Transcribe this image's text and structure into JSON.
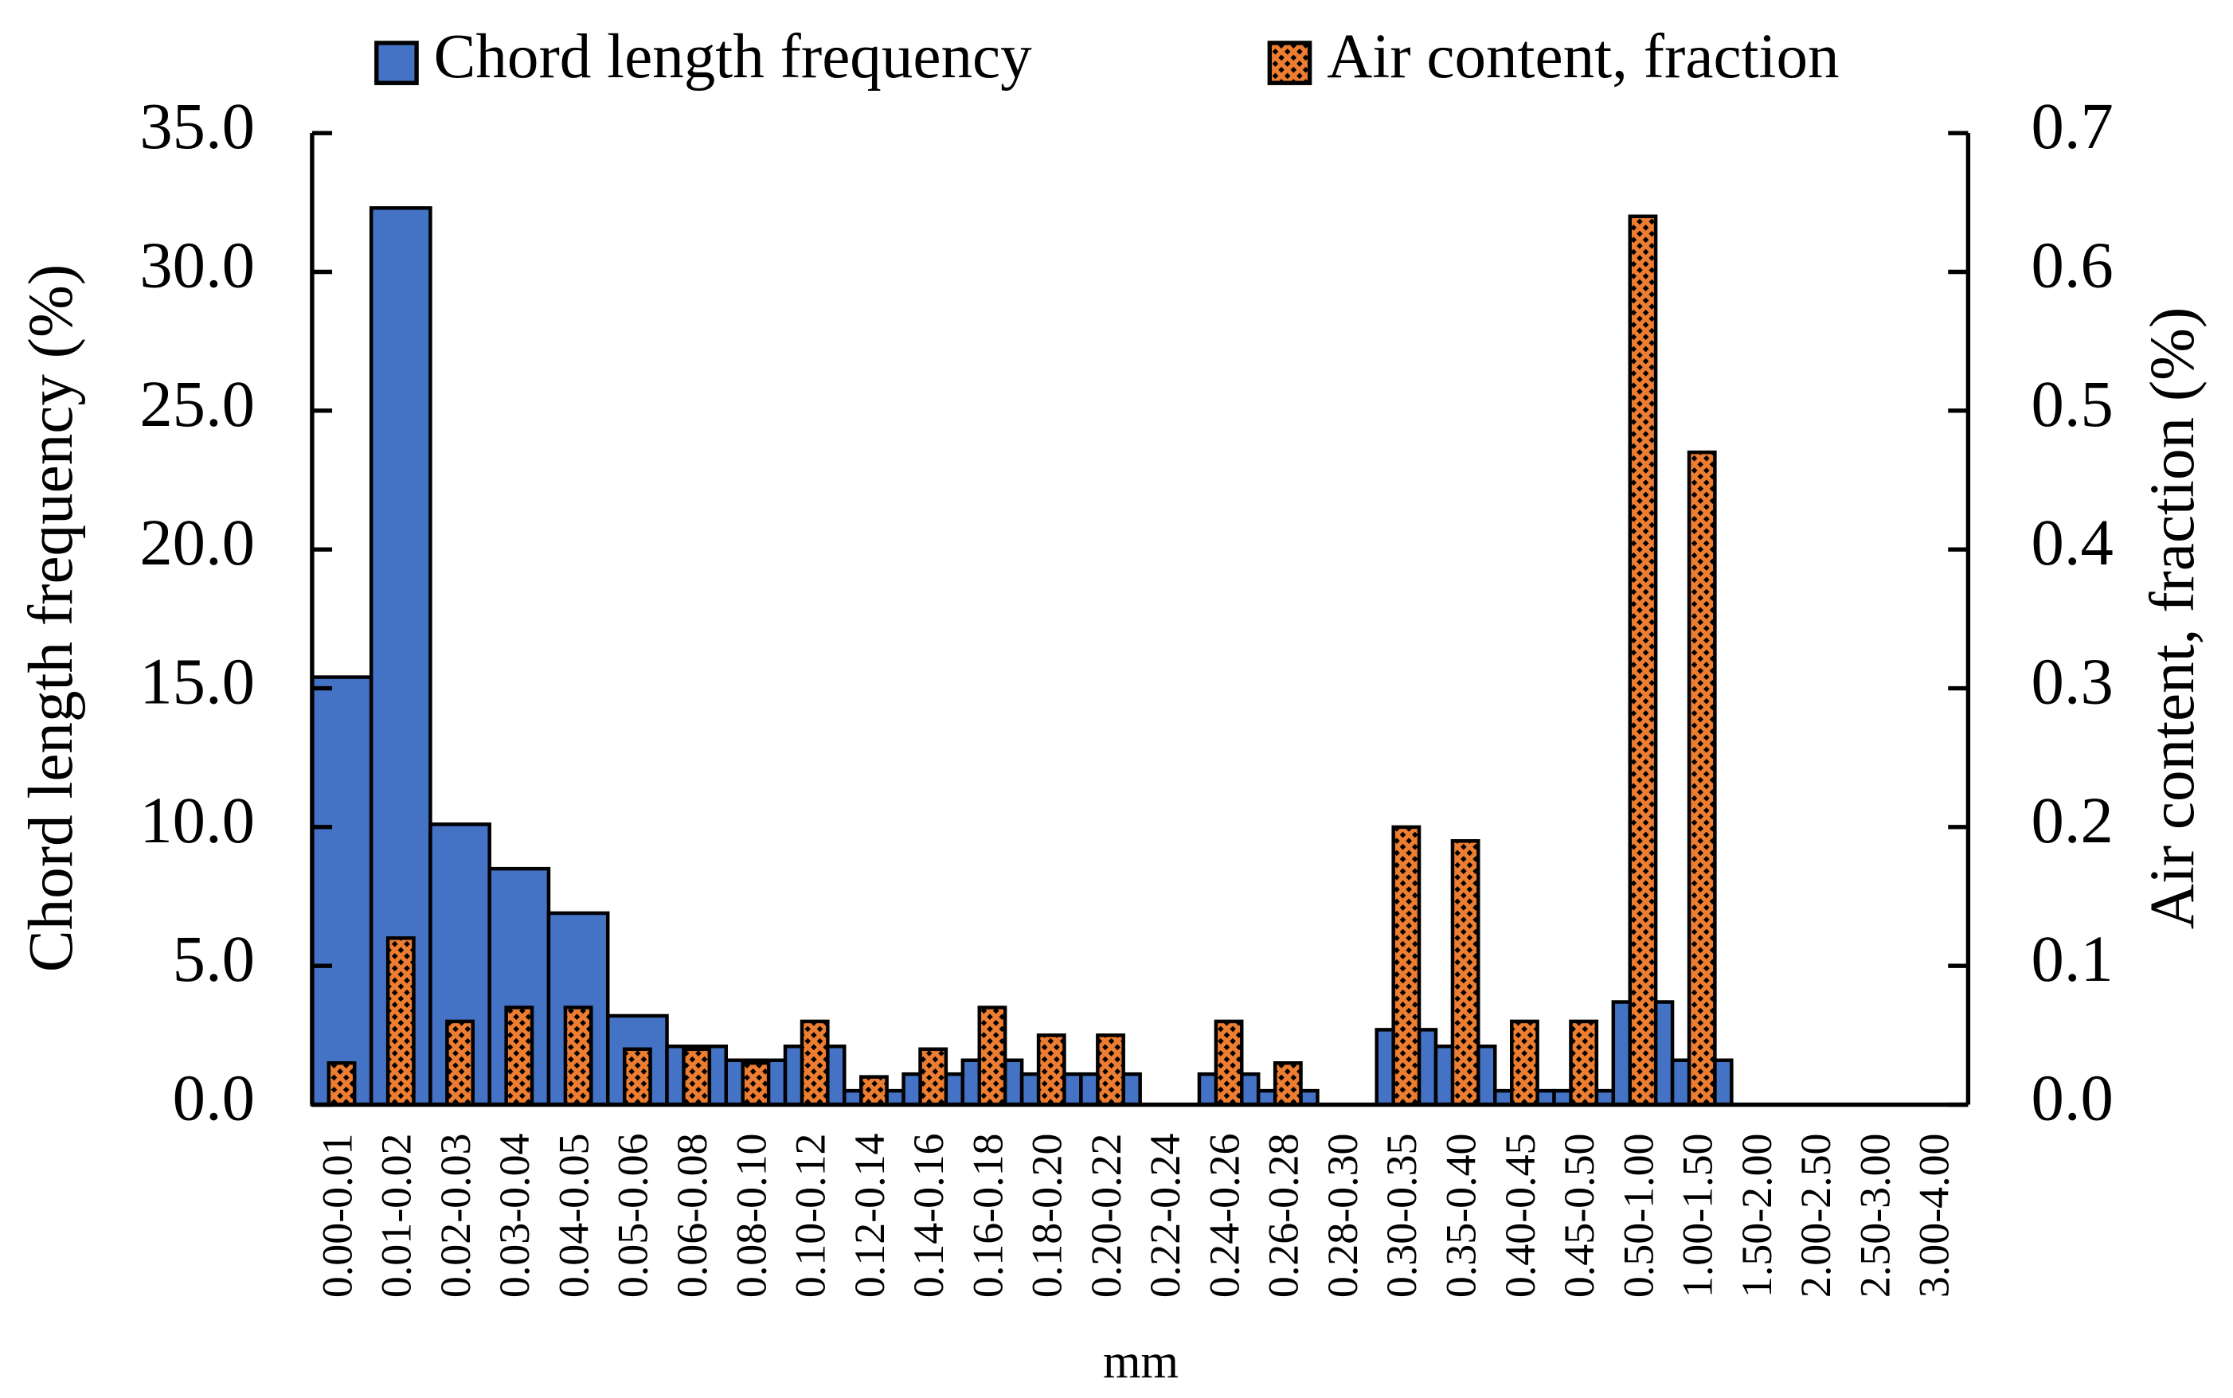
{
  "chart_data": {
    "type": "bar",
    "x_label": "mm",
    "y_label": "Chord length frequency (%)",
    "y2_label": "Air content, fraction (%)",
    "categories": [
      "0.00-0.01",
      "0.01-0.02",
      "0.02-0.03",
      "0.03-0.04",
      "0.04-0.05",
      "0.05-0.06",
      "0.06-0.08",
      "0.08-0.10",
      "0.10-0.12",
      "0.12-0.14",
      "0.14-0.16",
      "0.16-0.18",
      "0.18-0.20",
      "0.20-0.22",
      "0.22-0.24",
      "0.24-0.26",
      "0.26-0.28",
      "0.28-0.30",
      "0.30-0.35",
      "0.35-0.40",
      "0.40-0.45",
      "0.45-0.50",
      "0.50-1.00",
      "1.00-1.50",
      "1.50-2.00",
      "2.00-2.50",
      "2.50-3.00",
      "3.00-4.00"
    ],
    "series": [
      {
        "name": "Chord length frequency",
        "color": "#4472c4",
        "values": [
          15.4,
          32.3,
          10.1,
          8.5,
          6.9,
          3.2,
          2.1,
          1.6,
          2.1,
          0.5,
          1.1,
          1.6,
          1.1,
          1.1,
          0,
          1.1,
          0.5,
          0,
          2.7,
          2.1,
          0.5,
          0.5,
          3.7,
          1.6,
          0,
          0,
          0,
          0
        ]
      },
      {
        "name": "Air content, fraction",
        "color": "#ed7d31",
        "axis": "y2",
        "values": [
          0.03,
          0.12,
          0.06,
          0.07,
          0.07,
          0.04,
          0.04,
          0.03,
          0.06,
          0.02,
          0.04,
          0.07,
          0.05,
          0.05,
          0,
          0.06,
          0.03,
          0,
          0.2,
          0.19,
          0.06,
          0.06,
          0.64,
          0.47,
          0,
          0,
          0,
          0
        ]
      }
    ],
    "ylim": [
      0,
      35
    ],
    "yticks": [
      {
        "value": 0,
        "label": "0.0"
      },
      {
        "value": 5,
        "label": "5.0"
      },
      {
        "value": 10,
        "label": "10.0"
      },
      {
        "value": 15,
        "label": "15.0"
      },
      {
        "value": 20,
        "label": "20.0"
      },
      {
        "value": 25,
        "label": "25.0"
      },
      {
        "value": 30,
        "label": "30.0"
      },
      {
        "value": 35,
        "label": "35.0"
      }
    ],
    "y2lim": [
      0,
      0.7
    ],
    "y2ticks": [
      {
        "value": 0,
        "label": "0.0"
      },
      0.1,
      0.2,
      0.3,
      0.4,
      0.5,
      0.6,
      0.7
    ],
    "legend": "top"
  }
}
